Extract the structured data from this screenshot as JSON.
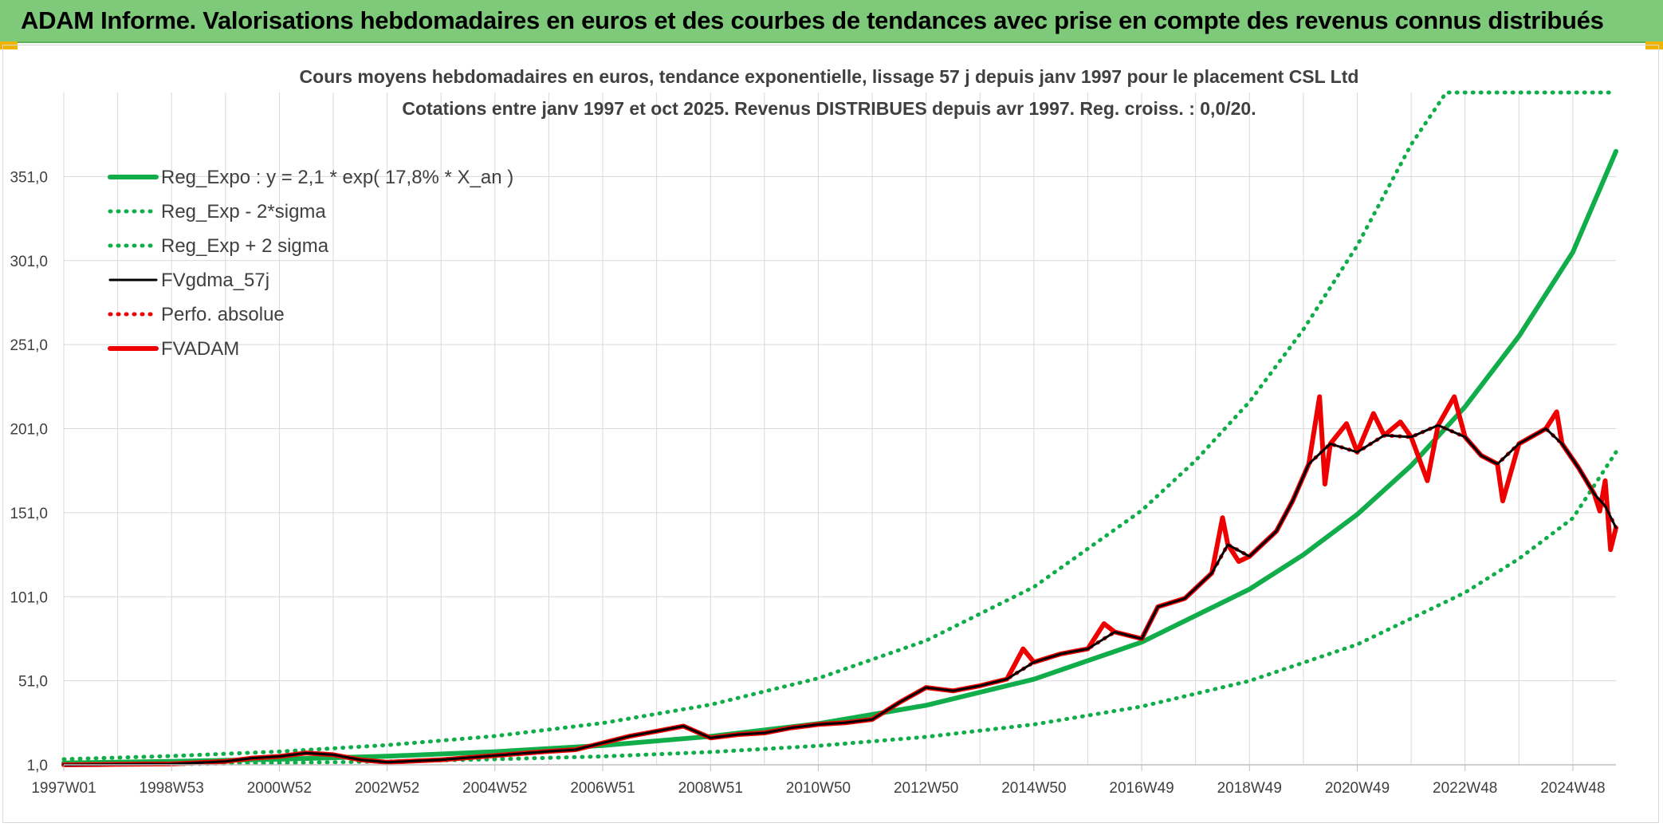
{
  "banner": {
    "title": "ADAM Informe. Valorisations hebdomadaires en euros et des courbes de tendances avec prise en compte des revenus connus distribués"
  },
  "colors": {
    "banner_bg": "#7ec97a",
    "reg_green": "#12ad4b",
    "fvgdma_black": "#000000",
    "fvadam_red": "#ee0000",
    "grid": "#d9d9d9",
    "text": "#404040"
  },
  "chart_data": {
    "type": "line",
    "title": "Cours moyens hebdomadaires en euros, tendance exponentielle, lissage 57 j depuis janv 1997 pour le placement CSL Ltd",
    "subtitle": "Cotations entre janv 1997 et oct 2025. Revenus DISTRIBUES depuis avr 1997. Reg. croiss. : 0,0/20.",
    "xlabel": "",
    "ylabel": "",
    "x_range": [
      "1997W01",
      "2025W43"
    ],
    "x_ticks": [
      "1997W01",
      "1998W53",
      "2000W52",
      "2002W52",
      "2004W52",
      "2006W51",
      "2008W51",
      "2010W50",
      "2012W50",
      "2014W50",
      "2016W49",
      "2018W49",
      "2020W49",
      "2022W48",
      "2024W48"
    ],
    "x_tick_years": [
      1997.0,
      1999.0,
      2001.0,
      2003.0,
      2005.0,
      2007.0,
      2009.0,
      2011.0,
      2013.0,
      2015.0,
      2017.0,
      2019.0,
      2021.0,
      2023.0,
      2025.0
    ],
    "y_ticks": [
      "1,0",
      "51,0",
      "101,0",
      "151,0",
      "201,0",
      "251,0",
      "301,0",
      "351,0"
    ],
    "y_tick_values": [
      1,
      51,
      101,
      151,
      201,
      251,
      301,
      351
    ],
    "ylim": [
      1,
      401
    ],
    "grid": true,
    "legend_position": "top-left",
    "series": [
      {
        "name": "Reg_Expo : y = 2,1 * exp( 17,8% *  X_an )",
        "style": "solid-thick",
        "color": "#12ad4b",
        "points": [
          [
            1997.0,
            2.1
          ],
          [
            1999.0,
            3.0
          ],
          [
            2001.0,
            4.3
          ],
          [
            2003.0,
            6.1
          ],
          [
            2005.0,
            8.8
          ],
          [
            2007.0,
            12.5
          ],
          [
            2009.0,
            17.9
          ],
          [
            2011.0,
            25.5
          ],
          [
            2013.0,
            36.4
          ],
          [
            2015.0,
            51.9
          ],
          [
            2017.0,
            74.0
          ],
          [
            2019.0,
            105.5
          ],
          [
            2020.0,
            126.0
          ],
          [
            2021.0,
            150.0
          ],
          [
            2022.0,
            179.0
          ],
          [
            2023.0,
            214.0
          ],
          [
            2024.0,
            256.0
          ],
          [
            2025.0,
            306.0
          ],
          [
            2025.8,
            366.0
          ]
        ]
      },
      {
        "name": "Reg_Exp - 2*sigma",
        "style": "dotted",
        "color": "#12ad4b",
        "points": [
          [
            1997.0,
            1.0
          ],
          [
            1999.0,
            1.4
          ],
          [
            2001.0,
            2.1
          ],
          [
            2003.0,
            3.0
          ],
          [
            2005.0,
            4.3
          ],
          [
            2007.0,
            6.0
          ],
          [
            2009.0,
            8.6
          ],
          [
            2011.0,
            12.3
          ],
          [
            2013.0,
            17.6
          ],
          [
            2015.0,
            25.0
          ],
          [
            2017.0,
            35.7
          ],
          [
            2019.0,
            50.9
          ],
          [
            2021.0,
            72.6
          ],
          [
            2023.0,
            103.5
          ],
          [
            2024.0,
            123.6
          ],
          [
            2025.0,
            147.7
          ],
          [
            2025.8,
            187.0
          ]
        ]
      },
      {
        "name": "Reg_Exp + 2 sigma",
        "style": "dotted",
        "color": "#12ad4b",
        "points": [
          [
            1997.0,
            4.3
          ],
          [
            1999.0,
            6.2
          ],
          [
            2001.0,
            8.9
          ],
          [
            2003.0,
            12.7
          ],
          [
            2005.0,
            18.1
          ],
          [
            2007.0,
            25.8
          ],
          [
            2009.0,
            36.8
          ],
          [
            2011.0,
            52.5
          ],
          [
            2013.0,
            74.9
          ],
          [
            2015.0,
            106.8
          ],
          [
            2017.0,
            152.3
          ],
          [
            2018.0,
            182.0
          ],
          [
            2019.0,
            217.0
          ],
          [
            2020.0,
            260.0
          ],
          [
            2021.0,
            310.0
          ],
          [
            2022.0,
            370.0
          ],
          [
            2022.65,
            401.0
          ],
          [
            2025.8,
            401.0
          ]
        ]
      },
      {
        "name": "FVgdma_57j",
        "style": "solid",
        "color": "#000000",
        "points": [
          [
            1997.0,
            1.0
          ],
          [
            1998.0,
            1.3
          ],
          [
            1999.0,
            1.5
          ],
          [
            2000.0,
            3.0
          ],
          [
            2000.5,
            5.0
          ],
          [
            2001.0,
            6.0
          ],
          [
            2001.5,
            8.0
          ],
          [
            2002.0,
            7.0
          ],
          [
            2002.5,
            4.0
          ],
          [
            2003.0,
            2.5
          ],
          [
            2004.0,
            4.0
          ],
          [
            2005.0,
            6.5
          ],
          [
            2006.0,
            9.0
          ],
          [
            2006.5,
            10.0
          ],
          [
            2007.0,
            14.0
          ],
          [
            2007.5,
            18.0
          ],
          [
            2008.0,
            21.0
          ],
          [
            2008.5,
            24.0
          ],
          [
            2009.0,
            17.0
          ],
          [
            2009.5,
            19.0
          ],
          [
            2010.0,
            20.0
          ],
          [
            2010.5,
            23.0
          ],
          [
            2011.0,
            25.0
          ],
          [
            2011.5,
            26.0
          ],
          [
            2012.0,
            28.0
          ],
          [
            2012.5,
            38.0
          ],
          [
            2013.0,
            47.0
          ],
          [
            2013.5,
            45.0
          ],
          [
            2014.0,
            48.0
          ],
          [
            2014.5,
            52.0
          ],
          [
            2015.0,
            62.0
          ],
          [
            2015.5,
            67.0
          ],
          [
            2016.0,
            70.0
          ],
          [
            2016.5,
            80.0
          ],
          [
            2017.0,
            76.0
          ],
          [
            2017.3,
            95.0
          ],
          [
            2017.8,
            100.0
          ],
          [
            2018.3,
            115.0
          ],
          [
            2018.6,
            132.0
          ],
          [
            2019.0,
            125.0
          ],
          [
            2019.5,
            140.0
          ],
          [
            2019.8,
            158.0
          ],
          [
            2020.1,
            180.0
          ],
          [
            2020.5,
            192.0
          ],
          [
            2021.0,
            187.0
          ],
          [
            2021.5,
            197.0
          ],
          [
            2022.0,
            196.0
          ],
          [
            2022.5,
            203.0
          ],
          [
            2023.0,
            196.0
          ],
          [
            2023.3,
            185.0
          ],
          [
            2023.6,
            180.0
          ],
          [
            2024.0,
            192.0
          ],
          [
            2024.5,
            201.0
          ],
          [
            2024.8,
            192.0
          ],
          [
            2025.1,
            178.0
          ],
          [
            2025.4,
            162.0
          ],
          [
            2025.6,
            155.0
          ],
          [
            2025.8,
            142.0
          ]
        ]
      },
      {
        "name": "Perfo. absolue",
        "style": "dotted",
        "color": "#ee0000",
        "points": [
          [
            1997.0,
            1.0
          ],
          [
            1998.0,
            1.3
          ],
          [
            1999.0,
            1.5
          ],
          [
            2000.0,
            3.0
          ],
          [
            2000.5,
            5.0
          ],
          [
            2001.0,
            6.0
          ],
          [
            2001.5,
            8.0
          ],
          [
            2002.0,
            7.0
          ],
          [
            2002.5,
            4.0
          ],
          [
            2003.0,
            2.5
          ],
          [
            2004.0,
            4.0
          ],
          [
            2005.0,
            6.5
          ],
          [
            2006.0,
            9.0
          ],
          [
            2006.5,
            10.0
          ],
          [
            2007.0,
            14.0
          ],
          [
            2007.5,
            18.0
          ],
          [
            2008.0,
            21.0
          ],
          [
            2008.5,
            24.0
          ],
          [
            2009.0,
            17.0
          ],
          [
            2009.5,
            19.0
          ],
          [
            2010.0,
            20.0
          ],
          [
            2010.5,
            23.0
          ],
          [
            2011.0,
            25.0
          ],
          [
            2011.5,
            26.0
          ],
          [
            2012.0,
            28.0
          ],
          [
            2012.5,
            38.0
          ],
          [
            2013.0,
            47.0
          ],
          [
            2013.5,
            45.0
          ],
          [
            2014.0,
            48.0
          ],
          [
            2014.5,
            52.0
          ],
          [
            2015.0,
            62.0
          ],
          [
            2015.5,
            67.0
          ],
          [
            2016.0,
            70.0
          ],
          [
            2016.5,
            80.0
          ],
          [
            2017.0,
            76.0
          ],
          [
            2017.3,
            95.0
          ],
          [
            2017.8,
            100.0
          ],
          [
            2018.3,
            115.0
          ],
          [
            2018.6,
            132.0
          ],
          [
            2019.0,
            125.0
          ],
          [
            2019.5,
            140.0
          ],
          [
            2019.8,
            158.0
          ],
          [
            2020.1,
            180.0
          ],
          [
            2020.5,
            192.0
          ],
          [
            2021.0,
            187.0
          ],
          [
            2021.5,
            197.0
          ],
          [
            2022.0,
            196.0
          ],
          [
            2022.5,
            203.0
          ],
          [
            2023.0,
            196.0
          ],
          [
            2023.3,
            185.0
          ],
          [
            2023.6,
            180.0
          ],
          [
            2024.0,
            192.0
          ],
          [
            2024.5,
            201.0
          ],
          [
            2024.8,
            192.0
          ],
          [
            2025.1,
            178.0
          ],
          [
            2025.4,
            162.0
          ],
          [
            2025.6,
            155.0
          ],
          [
            2025.8,
            142.0
          ]
        ]
      },
      {
        "name": "FVADAM",
        "style": "solid-thick",
        "color": "#ee0000",
        "points": [
          [
            1997.0,
            1.0
          ],
          [
            1998.0,
            1.3
          ],
          [
            1999.0,
            1.5
          ],
          [
            2000.0,
            3.0
          ],
          [
            2000.5,
            5.0
          ],
          [
            2001.0,
            6.0
          ],
          [
            2001.5,
            8.0
          ],
          [
            2002.0,
            7.0
          ],
          [
            2002.5,
            4.0
          ],
          [
            2003.0,
            2.5
          ],
          [
            2004.0,
            4.0
          ],
          [
            2005.0,
            6.5
          ],
          [
            2006.0,
            9.0
          ],
          [
            2006.5,
            10.0
          ],
          [
            2007.0,
            14.0
          ],
          [
            2007.5,
            18.0
          ],
          [
            2008.0,
            21.0
          ],
          [
            2008.5,
            24.0
          ],
          [
            2009.0,
            17.0
          ],
          [
            2009.5,
            19.0
          ],
          [
            2010.0,
            20.0
          ],
          [
            2010.5,
            23.0
          ],
          [
            2011.0,
            25.0
          ],
          [
            2011.5,
            26.0
          ],
          [
            2012.0,
            28.0
          ],
          [
            2012.5,
            38.0
          ],
          [
            2013.0,
            47.0
          ],
          [
            2013.5,
            45.0
          ],
          [
            2014.0,
            48.0
          ],
          [
            2014.5,
            52.0
          ],
          [
            2014.8,
            70.0
          ],
          [
            2015.0,
            62.0
          ],
          [
            2015.5,
            67.0
          ],
          [
            2016.0,
            70.0
          ],
          [
            2016.3,
            85.0
          ],
          [
            2016.5,
            80.0
          ],
          [
            2017.0,
            76.0
          ],
          [
            2017.3,
            95.0
          ],
          [
            2017.8,
            100.0
          ],
          [
            2018.3,
            115.0
          ],
          [
            2018.5,
            148.0
          ],
          [
            2018.6,
            132.0
          ],
          [
            2018.8,
            122.0
          ],
          [
            2019.0,
            125.0
          ],
          [
            2019.5,
            140.0
          ],
          [
            2019.8,
            158.0
          ],
          [
            2020.1,
            180.0
          ],
          [
            2020.3,
            220.0
          ],
          [
            2020.4,
            168.0
          ],
          [
            2020.5,
            192.0
          ],
          [
            2020.8,
            204.0
          ],
          [
            2021.0,
            187.0
          ],
          [
            2021.3,
            210.0
          ],
          [
            2021.5,
            197.0
          ],
          [
            2021.8,
            205.0
          ],
          [
            2022.0,
            196.0
          ],
          [
            2022.3,
            170.0
          ],
          [
            2022.5,
            203.0
          ],
          [
            2022.8,
            220.0
          ],
          [
            2023.0,
            196.0
          ],
          [
            2023.3,
            185.0
          ],
          [
            2023.6,
            180.0
          ],
          [
            2023.7,
            158.0
          ],
          [
            2024.0,
            192.0
          ],
          [
            2024.5,
            201.0
          ],
          [
            2024.7,
            211.0
          ],
          [
            2024.8,
            192.0
          ],
          [
            2025.1,
            178.0
          ],
          [
            2025.4,
            162.0
          ],
          [
            2025.5,
            152.0
          ],
          [
            2025.6,
            170.0
          ],
          [
            2025.7,
            129.0
          ],
          [
            2025.8,
            142.0
          ]
        ]
      }
    ]
  }
}
